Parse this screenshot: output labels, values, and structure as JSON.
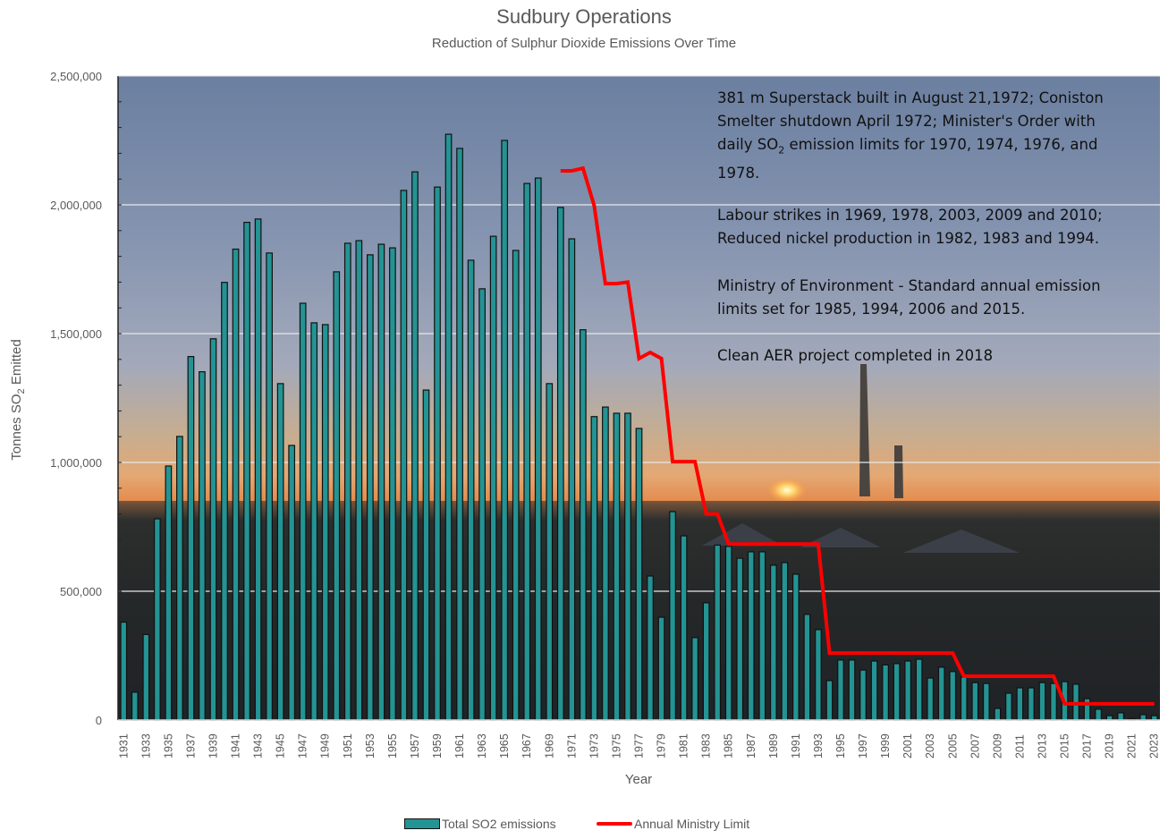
{
  "chart_data": {
    "type": "bar",
    "title": "Sudbury Operations",
    "subtitle": "Reduction of Sulphur Dioxide Emissions Over Time",
    "xlabel": "Year",
    "ylabel": "Tonnes SO2 Emitted",
    "ylabel_main": "Tonnes SO",
    "ylabel_sub": "2",
    "ylabel_tail": " Emitted",
    "ylim": [
      0,
      2500000
    ],
    "yticks": [
      0,
      500000,
      1000000,
      1500000,
      2000000,
      2500000
    ],
    "ytick_labels": [
      "0",
      "500,000",
      "1,000,000",
      "1,500,000",
      "2,000,000",
      "2,500,000"
    ],
    "grid": true,
    "legend_position": "bottom",
    "categories": [
      1931,
      1932,
      1933,
      1934,
      1935,
      1936,
      1937,
      1938,
      1939,
      1940,
      1941,
      1942,
      1943,
      1944,
      1945,
      1946,
      1947,
      1948,
      1949,
      1950,
      1951,
      1952,
      1953,
      1954,
      1955,
      1956,
      1957,
      1958,
      1959,
      1960,
      1961,
      1962,
      1963,
      1964,
      1965,
      1966,
      1967,
      1968,
      1969,
      1970,
      1971,
      1972,
      1973,
      1974,
      1975,
      1976,
      1977,
      1978,
      1979,
      1980,
      1981,
      1982,
      1983,
      1984,
      1985,
      1986,
      1987,
      1988,
      1989,
      1990,
      1991,
      1992,
      1993,
      1994,
      1995,
      1996,
      1997,
      1998,
      1999,
      2000,
      2001,
      2002,
      2003,
      2004,
      2005,
      2006,
      2007,
      2008,
      2009,
      2010,
      2011,
      2012,
      2013,
      2014,
      2015,
      2016,
      2017,
      2018,
      2019,
      2020,
      2021,
      2022,
      2023
    ],
    "series": [
      {
        "name": "Total SO2 emissions",
        "type": "bar",
        "color": "#249393",
        "values": [
          380000,
          108000,
          332000,
          781000,
          986000,
          1101000,
          1411000,
          1352000,
          1480000,
          1699000,
          1828000,
          1932000,
          1945000,
          1813000,
          1306000,
          1066000,
          1618000,
          1542000,
          1535000,
          1740000,
          1851000,
          1861000,
          1806000,
          1847000,
          1833000,
          2056000,
          2128000,
          1281000,
          2069000,
          2274000,
          2219000,
          1785000,
          1674000,
          1878000,
          2250000,
          1823000,
          2083000,
          2104000,
          1306000,
          1990000,
          1868000,
          1515000,
          1178000,
          1215000,
          1191000,
          1191000,
          1132000,
          559000,
          399000,
          809000,
          715000,
          320000,
          455000,
          679000,
          674000,
          628000,
          653000,
          653000,
          601000,
          611000,
          566000,
          410000,
          351000,
          153000,
          233000,
          233000,
          194000,
          229000,
          214000,
          219000,
          229000,
          236000,
          163000,
          205000,
          188000,
          167000,
          145000,
          142000,
          45000,
          104000,
          125000,
          125000,
          145000,
          142000,
          149000,
          139000,
          83000,
          42000,
          17000,
          28000,
          5000,
          21000,
          17000
        ]
      },
      {
        "name": "Annual Ministry Limit",
        "type": "line",
        "color": "#ff0000",
        "start_year": 1970,
        "values": [
          2132000,
          2132000,
          2142000,
          1997000,
          1694000,
          1694000,
          1700000,
          1403000,
          1427000,
          1403000,
          1003000,
          1003000,
          1003000,
          800000,
          800000,
          683000,
          683000,
          683000,
          683000,
          683000,
          683000,
          683000,
          683000,
          683000,
          260000,
          260000,
          260000,
          260000,
          260000,
          260000,
          260000,
          260000,
          260000,
          260000,
          260000,
          260000,
          170000,
          170000,
          170000,
          170000,
          170000,
          170000,
          170000,
          170000,
          170000,
          63000,
          63000,
          63000,
          63000,
          63000,
          63000,
          63000,
          63000,
          63000
        ]
      }
    ],
    "legend": [
      {
        "label": "Total SO2 emissions",
        "kind": "bar"
      },
      {
        "label": "Annual Ministry Limit",
        "kind": "line"
      }
    ],
    "annotations": [
      {
        "lines": [
          "381 m Superstack built in August 21,1972; Coniston",
          "Smelter shutdown April 1972; Minister's Order with"
        ],
        "line3_pre": "daily SO",
        "line3_sub": "2",
        "line3_post": " emission limits for 1970, 1974, 1976, and",
        "line4": "1978."
      },
      {
        "lines": [
          "Labour strikes in 1969, 1978, 2003, 2009 and 2010;",
          "Reduced nickel production in 1982, 1983 and 1994."
        ]
      },
      {
        "lines": [
          "Ministry of Environment - Standard annual emission",
          "limits set for 1985, 1994, 2006 and 2015."
        ]
      },
      {
        "lines": [
          "Clean AER project completed in 2018"
        ]
      }
    ]
  }
}
